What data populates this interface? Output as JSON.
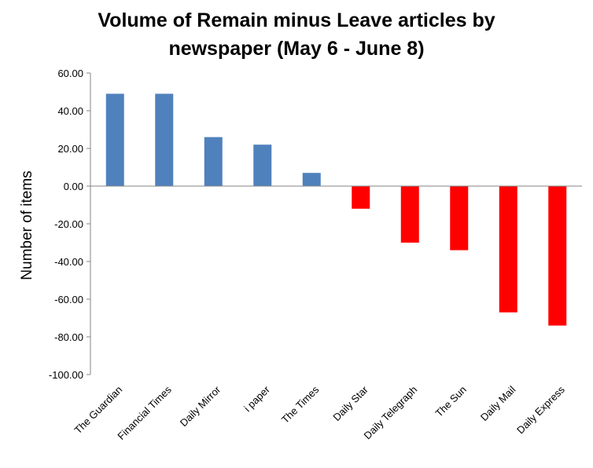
{
  "chart_data": {
    "type": "bar",
    "title_lines": [
      "Volume of Remain minus Leave articles by",
      "newspaper (May 6 - June 8)"
    ],
    "ylabel": "Number of items",
    "xlabel": "",
    "ylim": [
      -100,
      60
    ],
    "yticks": [
      60,
      40,
      20,
      0,
      -20,
      -40,
      -60,
      -80,
      -100
    ],
    "ytick_labels": [
      "60.00",
      "40.00",
      "20.00",
      "0.00",
      "-20.00",
      "-40.00",
      "-60.00",
      "-80.00",
      "-100.00"
    ],
    "categories": [
      "The Guardian",
      "Financial Times",
      "Daily Mirror",
      "i paper",
      "The Times",
      "Daily Star",
      "Daily Telegraph",
      "The Sun",
      "Daily Mail",
      "Daily Express"
    ],
    "values": [
      49,
      49,
      26,
      22,
      7,
      -12,
      -30,
      -34,
      -67,
      -74
    ],
    "colors": {
      "positive": "#4f81bd",
      "negative": "#ff0000"
    },
    "grid": false,
    "legend": "none"
  }
}
